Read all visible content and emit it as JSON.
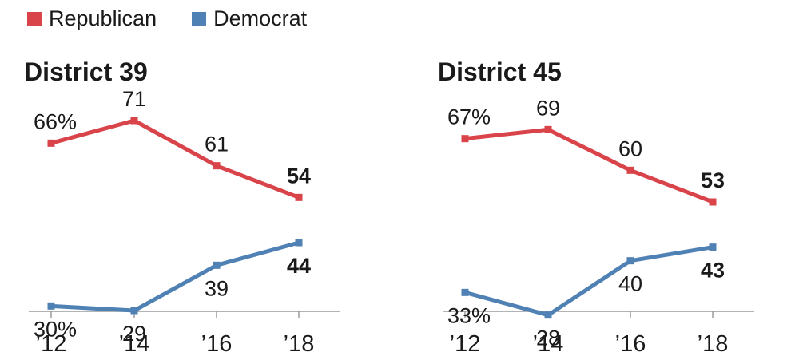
{
  "legend": [
    {
      "label": "Republican",
      "color": "#d9444b"
    },
    {
      "label": "Democrat",
      "color": "#4f81b5"
    }
  ],
  "chart_data": [
    {
      "type": "line",
      "title": "District 39",
      "categories": [
        "’12",
        "’14",
        "’16",
        "’18"
      ],
      "ylim": [
        20,
        80
      ],
      "grid": false,
      "series": [
        {
          "name": "Republican",
          "color": "#d9444b",
          "values": [
            66,
            71,
            61,
            54
          ],
          "labels": [
            "66%",
            "71",
            "61",
            "54"
          ]
        },
        {
          "name": "Democrat",
          "color": "#4f81b5",
          "values": [
            30,
            29,
            39,
            44
          ],
          "labels": [
            "30%",
            "29",
            "39",
            "44"
          ]
        }
      ]
    },
    {
      "type": "line",
      "title": "District 45",
      "categories": [
        "’12",
        "’14",
        "’16",
        "’18"
      ],
      "ylim": [
        20,
        80
      ],
      "grid": false,
      "series": [
        {
          "name": "Republican",
          "color": "#d9444b",
          "values": [
            67,
            69,
            60,
            53
          ],
          "labels": [
            "67%",
            "69",
            "60",
            "53"
          ]
        },
        {
          "name": "Democrat",
          "color": "#4f81b5",
          "values": [
            33,
            28,
            40,
            43
          ],
          "labels": [
            "33%",
            "28",
            "40",
            "43"
          ]
        }
      ]
    }
  ]
}
